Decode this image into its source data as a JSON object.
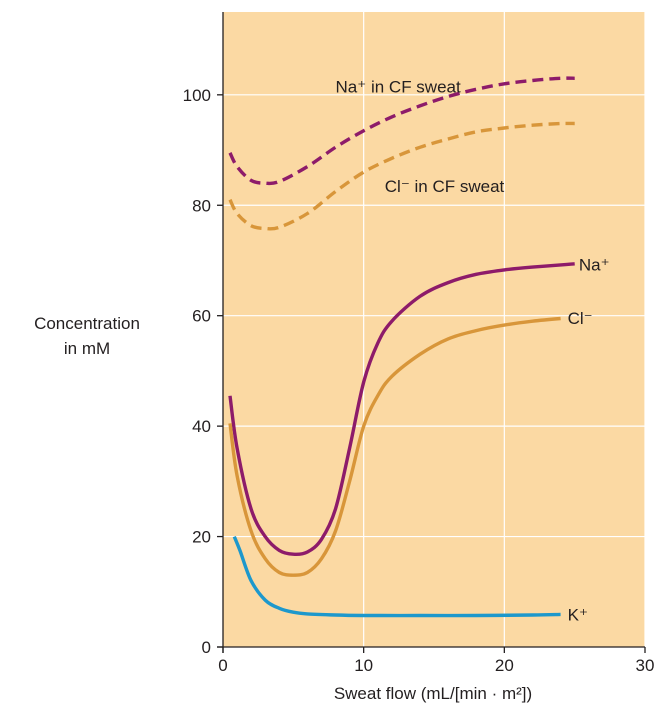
{
  "chart_data": {
    "type": "line",
    "xlabel": "Sweat flow (mL/[min · m²])",
    "ylabel_lines": [
      "Concentration",
      "in mM"
    ],
    "xlim": [
      0,
      30
    ],
    "ylim": [
      0,
      115
    ],
    "x_ticks": [
      "0",
      "10",
      "20",
      "30"
    ],
    "y_ticks": [
      "0",
      "20",
      "40",
      "60",
      "80",
      "100"
    ],
    "grid": true,
    "background": "#fbd9a3",
    "series": [
      {
        "name": "Na⁺ in CF sweat",
        "color": "#8d1b6a",
        "dashed": true,
        "x": [
          0.5,
          1,
          2,
          3,
          4,
          6,
          8,
          10,
          12,
          14,
          16,
          18,
          20,
          22,
          24,
          25
        ],
        "y": [
          89.5,
          87,
          84.5,
          84,
          84.3,
          87,
          90.5,
          93.5,
          96,
          98,
          99.7,
          101,
          102,
          102.6,
          103,
          103
        ]
      },
      {
        "name": "Cl⁻ in CF sweat",
        "color": "#d8963a",
        "dashed": true,
        "x": [
          0.5,
          1,
          2,
          3,
          4,
          6,
          8,
          10,
          12,
          14,
          16,
          18,
          20,
          22,
          24,
          25
        ],
        "y": [
          81,
          78.5,
          76.3,
          75.8,
          76,
          78.5,
          82.5,
          86,
          88.5,
          90.5,
          92,
          93.3,
          94,
          94.5,
          94.8,
          94.8
        ]
      },
      {
        "name": "Na⁺",
        "color": "#8d1b6a",
        "dashed": false,
        "x": [
          0.5,
          1,
          2,
          3,
          4,
          5,
          6,
          7,
          8,
          9,
          10,
          11,
          12,
          14,
          16,
          18,
          20,
          22,
          24,
          25
        ],
        "y": [
          45.5,
          36,
          25,
          20,
          17.5,
          16.8,
          17.2,
          19.5,
          25,
          36,
          48,
          55,
          59,
          63.5,
          66,
          67.5,
          68.3,
          68.8,
          69.2,
          69.4
        ]
      },
      {
        "name": "Cl⁻",
        "color": "#d8963a",
        "dashed": false,
        "x": [
          0.5,
          1,
          2,
          3,
          4,
          5,
          6,
          7,
          8,
          9,
          10,
          11,
          12,
          14,
          16,
          18,
          20,
          22,
          24
        ],
        "y": [
          40.5,
          31,
          21,
          16,
          13.5,
          13,
          13.5,
          16,
          21,
          30,
          40,
          45.5,
          49,
          53,
          55.8,
          57.3,
          58.3,
          59,
          59.5
        ]
      },
      {
        "name": "K⁺",
        "color": "#1d98cc",
        "dashed": false,
        "x": [
          0.8,
          1.2,
          2,
          3,
          4,
          5,
          6,
          8,
          10,
          14,
          18,
          22,
          24
        ],
        "y": [
          20,
          17.5,
          12,
          8.5,
          7,
          6.3,
          6,
          5.8,
          5.7,
          5.7,
          5.7,
          5.8,
          5.9
        ]
      }
    ],
    "labels": [
      {
        "text": "Na⁺ in CF sweat",
        "x": 8,
        "y": 101.5
      },
      {
        "text": "Cl⁻ in CF sweat",
        "x": 11.5,
        "y": 83.5
      },
      {
        "text": "Na⁺",
        "x": 25.3,
        "y": 69.3
      },
      {
        "text": "Cl⁻",
        "x": 24.5,
        "y": 59.6
      },
      {
        "text": "K⁺",
        "x": 24.5,
        "y": 5.9
      }
    ]
  }
}
